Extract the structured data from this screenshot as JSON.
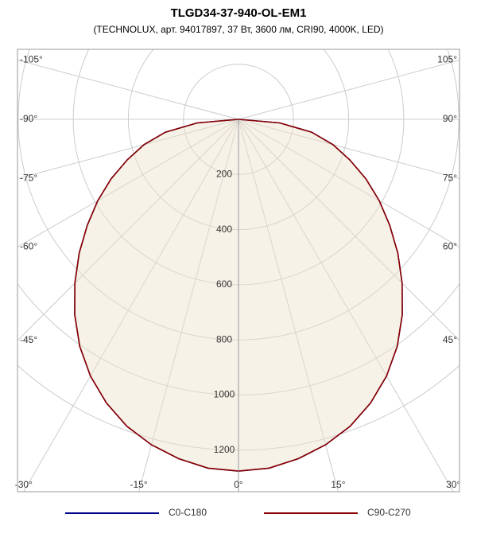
{
  "chart_data": {
    "type": "polar",
    "title": "TLGD34-37-940-OL-EM1",
    "subtitle": "(TECHNOLUX, арт. 94017897, 37 Вт, 3600 лм, CRI90, 4000K, LED)",
    "x": [
      -90,
      -85,
      -80,
      -75,
      -70,
      -65,
      -60,
      -55,
      -50,
      -45,
      -40,
      -35,
      -30,
      -25,
      -20,
      -15,
      -10,
      -5,
      0,
      5,
      10,
      15,
      20,
      25,
      30,
      35,
      40,
      45,
      50,
      55,
      60,
      65,
      70,
      75,
      80,
      85,
      90
    ],
    "series": [
      {
        "name": "C0-C180",
        "color": "#00008b",
        "values": [
          0,
          150,
          270,
          355,
          430,
          510,
          590,
          670,
          755,
          840,
          925,
          1005,
          1075,
          1135,
          1185,
          1222,
          1250,
          1270,
          1276,
          1270,
          1250,
          1222,
          1185,
          1135,
          1075,
          1005,
          925,
          840,
          755,
          670,
          590,
          510,
          430,
          355,
          270,
          150,
          0
        ]
      },
      {
        "name": "C90-C270",
        "color": "#8b0000",
        "values": [
          0,
          150,
          270,
          355,
          430,
          510,
          590,
          670,
          755,
          840,
          925,
          1005,
          1075,
          1135,
          1185,
          1222,
          1250,
          1270,
          1276,
          1270,
          1250,
          1222,
          1185,
          1135,
          1075,
          1005,
          925,
          840,
          755,
          670,
          590,
          510,
          430,
          355,
          270,
          150,
          0
        ]
      }
    ],
    "angle_ticks": [
      {
        "value": -105,
        "label": "-105°"
      },
      {
        "value": -90,
        "label": "-90°"
      },
      {
        "value": -75,
        "label": "-75°"
      },
      {
        "value": -60,
        "label": "-60°"
      },
      {
        "value": -45,
        "label": "-45°"
      },
      {
        "value": -30,
        "label": "-30°"
      },
      {
        "value": -15,
        "label": "-15°"
      },
      {
        "value": 0,
        "label": "0°"
      },
      {
        "value": 15,
        "label": "15°"
      },
      {
        "value": 30,
        "label": "30°"
      },
      {
        "value": 45,
        "label": "45°"
      },
      {
        "value": 60,
        "label": "60°"
      },
      {
        "value": 75,
        "label": "75°"
      },
      {
        "value": 90,
        "label": "90°"
      },
      {
        "value": 105,
        "label": "105°"
      }
    ],
    "rticks": [
      200,
      400,
      600,
      800,
      1000,
      1200
    ],
    "grid": true
  }
}
